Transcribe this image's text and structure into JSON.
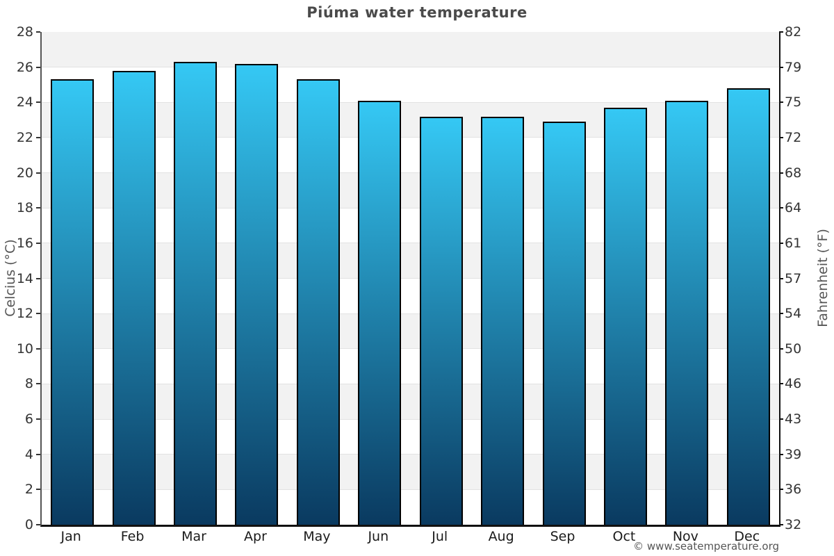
{
  "chart_data": {
    "type": "bar",
    "title": "Piúma water temperature",
    "categories": [
      "Jan",
      "Feb",
      "Mar",
      "Apr",
      "May",
      "Jun",
      "Jul",
      "Aug",
      "Sep",
      "Oct",
      "Nov",
      "Dec"
    ],
    "values": [
      25.3,
      25.8,
      26.3,
      26.2,
      25.3,
      24.1,
      23.2,
      23.2,
      22.9,
      23.7,
      24.1,
      24.8
    ],
    "ylabel_left": "Celcius (°C)",
    "ylabel_right": "Fahrenheit (°F)",
    "ylim": [
      0,
      28
    ],
    "yticks_celsius": [
      28,
      26,
      24,
      22,
      20,
      18,
      16,
      14,
      12,
      10,
      8,
      6,
      4,
      2,
      0
    ],
    "yticks_fahrenheit": [
      82,
      79,
      75,
      72,
      68,
      64,
      61,
      57,
      54,
      50,
      46,
      43,
      39,
      36,
      32
    ],
    "grid": "alternating horizontal bands every 2°C",
    "legend": "none",
    "colors": {
      "bar_gradient_top": "#35c8f4",
      "bar_gradient_bottom": "#0a3a60",
      "bar_border": "#000000",
      "band_gray": "#f2f2f2",
      "gridline": "#e2e2e2",
      "title_text": "#4a4a4a",
      "tick_text": "#333333"
    }
  },
  "footer": {
    "copyright": "© www.seatemperature.org"
  }
}
